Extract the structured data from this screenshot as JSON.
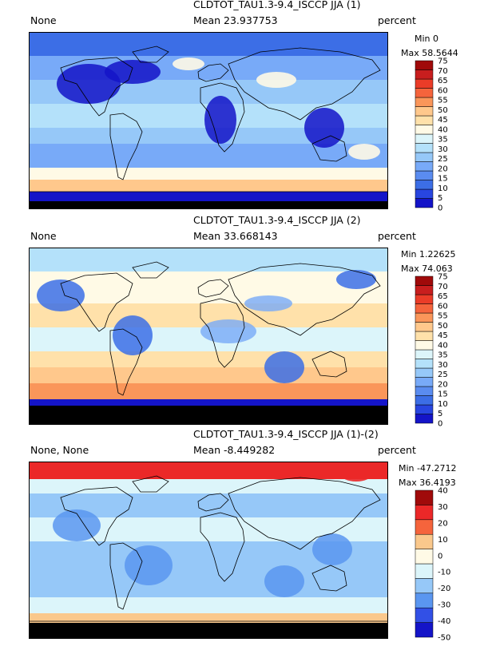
{
  "panels": [
    {
      "title": "CLDTOT_TAU1.3-9.4_ISCCP JJA (1)",
      "variable": "None",
      "mean": "Mean 23.937753",
      "units": "percent",
      "min": "Min 0",
      "max": "Max 58.5644",
      "colorbar": {
        "levels": [
          "0",
          "5",
          "10",
          "15",
          "20",
          "25",
          "30",
          "35",
          "40",
          "45",
          "50",
          "55",
          "60",
          "65",
          "70",
          "75"
        ],
        "colors": [
          "#1414c8",
          "#2846e0",
          "#3c6ee6",
          "#5a8cf0",
          "#78aaf8",
          "#96c8f8",
          "#b4e1fa",
          "#dcf5fa",
          "#fffae6",
          "#ffe1aa",
          "#ffc88c",
          "#fa965a",
          "#f5643c",
          "#eb3c28",
          "#c81e1e",
          "#a00a0a"
        ]
      },
      "style": "abs1"
    },
    {
      "title": "CLDTOT_TAU1.3-9.4_ISCCP JJA (2)",
      "variable": "None",
      "mean": "Mean 33.668143",
      "units": "percent",
      "min": "Min 1.22625",
      "max": "Max 74.063",
      "colorbar": {
        "levels": [
          "0",
          "5",
          "10",
          "15",
          "20",
          "25",
          "30",
          "35",
          "40",
          "45",
          "50",
          "55",
          "60",
          "65",
          "70",
          "75"
        ],
        "colors": [
          "#1414c8",
          "#2846e0",
          "#3c6ee6",
          "#5a8cf0",
          "#78aaf8",
          "#96c8f8",
          "#b4e1fa",
          "#dcf5fa",
          "#fffae6",
          "#ffe1aa",
          "#ffc88c",
          "#fa965a",
          "#f5643c",
          "#eb3c28",
          "#c81e1e",
          "#a00a0a"
        ]
      },
      "style": "abs2"
    },
    {
      "title": "CLDTOT_TAU1.3-9.4_ISCCP JJA (1)-(2)",
      "variable": "None, None",
      "mean": "Mean -8.449282",
      "units": "percent",
      "min": "Min -47.2712",
      "max": "Max 36.4193",
      "colorbar": {
        "levels": [
          "-50",
          "-40",
          "-30",
          "-20",
          "-10",
          "0",
          "10",
          "20",
          "30",
          "40"
        ],
        "colors": [
          "#1414c8",
          "#3250e6",
          "#5a96f0",
          "#96c8f8",
          "#dcf5fa",
          "#fffae6",
          "#fac88c",
          "#f5643c",
          "#eb2828",
          "#a00a0a"
        ]
      },
      "style": "diff"
    }
  ]
}
